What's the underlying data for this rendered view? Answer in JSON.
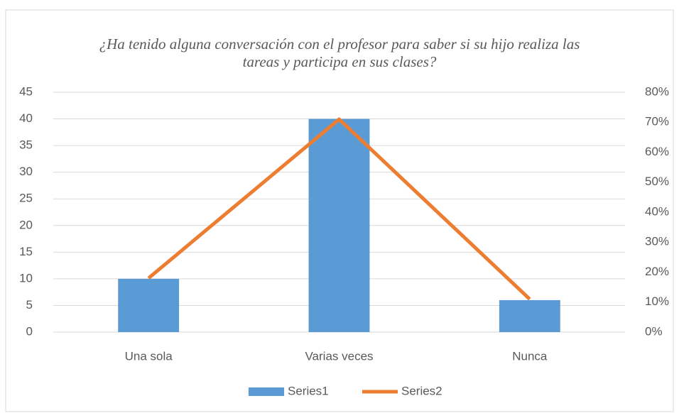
{
  "chart_data": {
    "type": "bar_line",
    "title": "¿Ha tenido alguna conversación con el profesor para saber si su hijo realiza las tareas y participa en sus clases?",
    "categories": [
      "Una sola",
      "Varias veces",
      "Nunca"
    ],
    "series": [
      {
        "name": "Series1",
        "type": "bar",
        "color": "#5b9bd5",
        "values": [
          10,
          40,
          6
        ]
      },
      {
        "name": "Series2",
        "type": "line",
        "color": "#ed7d31",
        "axis": "y2",
        "values": [
          18,
          71,
          11
        ]
      }
    ],
    "ylim": [
      0,
      45
    ],
    "yticks": [
      0,
      5,
      10,
      15,
      20,
      25,
      30,
      35,
      40,
      45
    ],
    "y2lim": [
      0,
      80
    ],
    "y2ticks": [
      {
        "value": 0,
        "label": "0%"
      },
      {
        "value": 10,
        "label": "10%"
      },
      {
        "value": 20,
        "label": "20%"
      },
      {
        "value": 30,
        "label": "30%"
      },
      {
        "value": 40,
        "label": "40%"
      },
      {
        "value": 50,
        "label": "50%"
      },
      {
        "value": 60,
        "label": "60%"
      },
      {
        "value": 70,
        "label": "70%"
      },
      {
        "value": 80,
        "label": "80%"
      }
    ],
    "grid": true,
    "legend": "bottom"
  }
}
